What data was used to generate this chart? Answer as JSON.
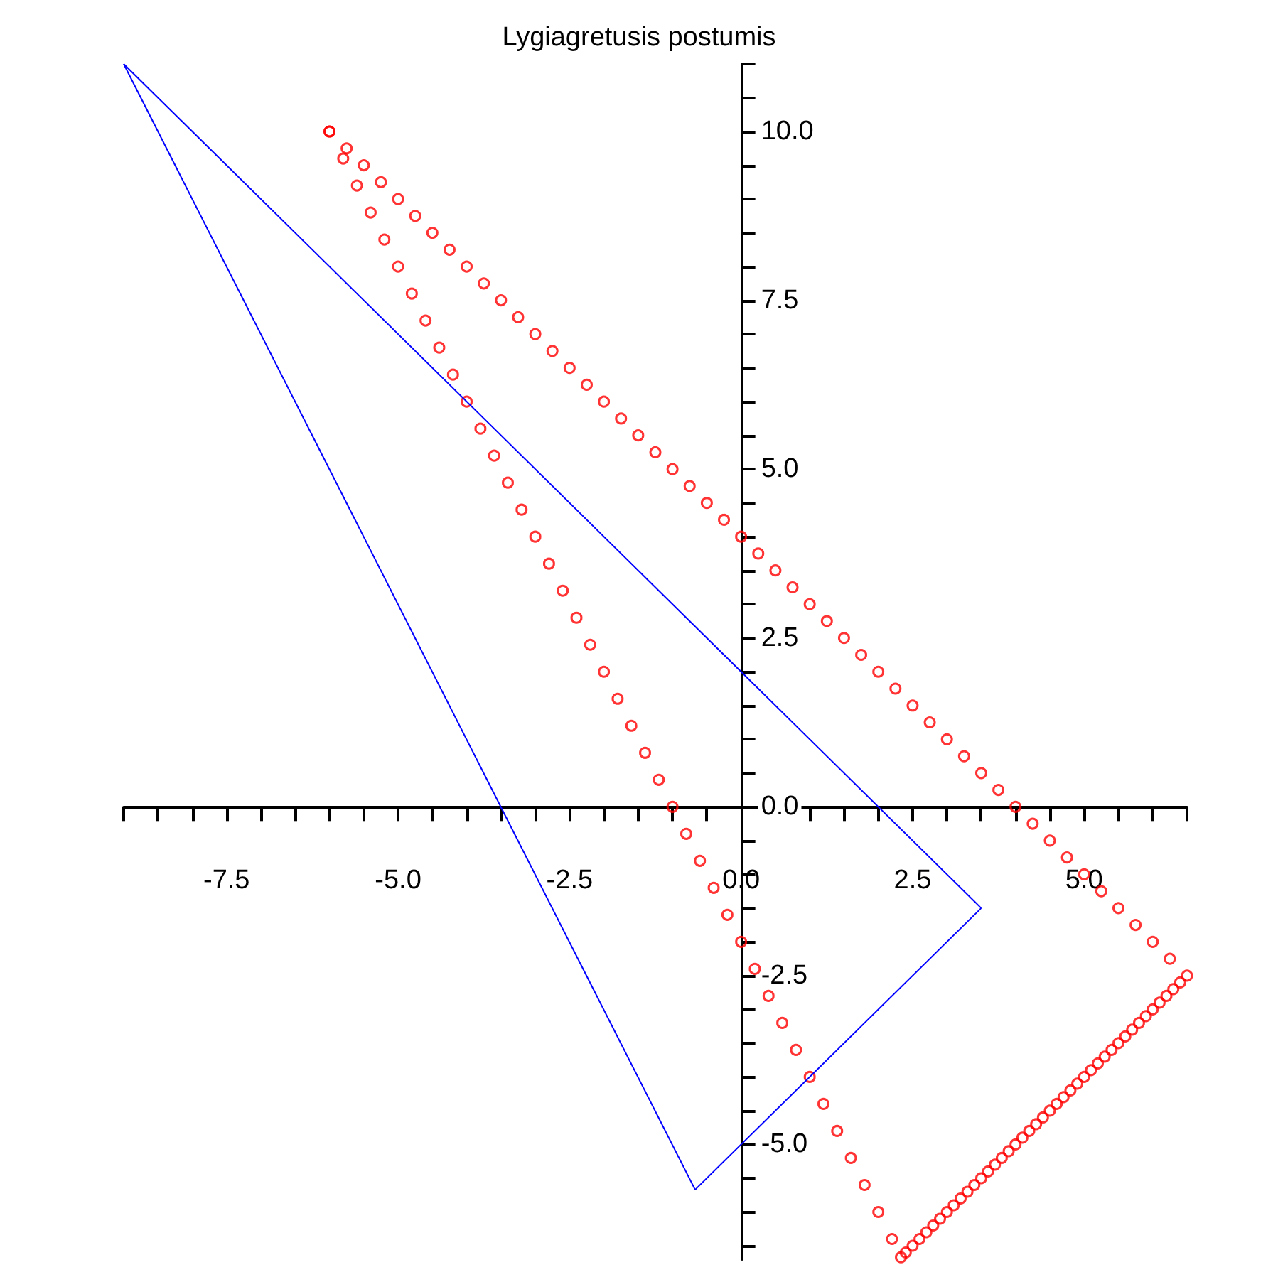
{
  "chart_data": {
    "type": "line",
    "title": "Lygiagretusis postumis",
    "xlim": [
      -9,
      6.5
    ],
    "ylim": [
      -6.7,
      11
    ],
    "xticks": [
      {
        "value": -9,
        "label": null
      },
      {
        "value": -8.5,
        "label": null
      },
      {
        "value": -8,
        "label": null
      },
      {
        "value": -7.5,
        "label": "-7.5"
      },
      {
        "value": -7,
        "label": null
      },
      {
        "value": -6.5,
        "label": null
      },
      {
        "value": -6,
        "label": null
      },
      {
        "value": -5.5,
        "label": null
      },
      {
        "value": -5,
        "label": "-5.0"
      },
      {
        "value": -4.5,
        "label": null
      },
      {
        "value": -4,
        "label": null
      },
      {
        "value": -3.5,
        "label": null
      },
      {
        "value": -3,
        "label": null
      },
      {
        "value": -2.5,
        "label": "-2.5"
      },
      {
        "value": -2,
        "label": null
      },
      {
        "value": -1.5,
        "label": null
      },
      {
        "value": -1,
        "label": null
      },
      {
        "value": -0.5,
        "label": null
      },
      {
        "value": 0,
        "label": "0.0"
      },
      {
        "value": 0.5,
        "label": null
      },
      {
        "value": 1,
        "label": null
      },
      {
        "value": 1.5,
        "label": null
      },
      {
        "value": 2,
        "label": null
      },
      {
        "value": 2.5,
        "label": "2.5"
      },
      {
        "value": 3,
        "label": null
      },
      {
        "value": 3.5,
        "label": null
      },
      {
        "value": 4,
        "label": null
      },
      {
        "value": 4.5,
        "label": null
      },
      {
        "value": 5,
        "label": "5.0"
      },
      {
        "value": 5.5,
        "label": null
      },
      {
        "value": 6,
        "label": null
      },
      {
        "value": 6.5,
        "label": null
      }
    ],
    "yticks": [
      {
        "value": -6.5,
        "label": null
      },
      {
        "value": -6,
        "label": null
      },
      {
        "value": -5.5,
        "label": null
      },
      {
        "value": -5,
        "label": "-5.0"
      },
      {
        "value": -4.5,
        "label": null
      },
      {
        "value": -4,
        "label": null
      },
      {
        "value": -3.5,
        "label": null
      },
      {
        "value": -3,
        "label": null
      },
      {
        "value": -2.5,
        "label": "-2.5"
      },
      {
        "value": -2,
        "label": null
      },
      {
        "value": -1.5,
        "label": null
      },
      {
        "value": -1,
        "label": null
      },
      {
        "value": -0.5,
        "label": null
      },
      {
        "value": 0,
        "label": "0.0"
      },
      {
        "value": 0.5,
        "label": null
      },
      {
        "value": 1,
        "label": null
      },
      {
        "value": 1.5,
        "label": null
      },
      {
        "value": 2,
        "label": null
      },
      {
        "value": 2.5,
        "label": "2.5"
      },
      {
        "value": 3,
        "label": null
      },
      {
        "value": 3.5,
        "label": null
      },
      {
        "value": 4,
        "label": null
      },
      {
        "value": 4.5,
        "label": null
      },
      {
        "value": 5,
        "label": "5.0"
      },
      {
        "value": 5.5,
        "label": null
      },
      {
        "value": 6,
        "label": null
      },
      {
        "value": 6.5,
        "label": null
      },
      {
        "value": 7,
        "label": null
      },
      {
        "value": 7.5,
        "label": "7.5"
      },
      {
        "value": 8,
        "label": null
      },
      {
        "value": 8.5,
        "label": null
      },
      {
        "value": 9,
        "label": null
      },
      {
        "value": 9.5,
        "label": null
      },
      {
        "value": 10,
        "label": "10.0"
      },
      {
        "value": 10.5,
        "label": null
      },
      {
        "value": 11,
        "label": null
      }
    ],
    "series": [
      {
        "type": "line",
        "color": "#0000ff",
        "marker": "none",
        "x": [
          -9,
          3.5
        ],
        "values": [
          11,
          -1.5
        ]
      },
      {
        "color": "#0000ff",
        "marker": "none",
        "x": [
          -0.67,
          3.5
        ],
        "values": [
          -5.67,
          -1.5
        ]
      },
      {
        "color": "#0000ff",
        "marker": "none",
        "x": [
          -9,
          -0.67
        ],
        "values": [
          11,
          -5.67
        ]
      },
      {
        "type": "scatter",
        "color": "#ff0000",
        "marker": "circle",
        "x": [
          -6,
          -5.75,
          -5.5,
          -5.25,
          -5,
          -4.75,
          -4.5,
          -4.25,
          -4,
          -3.75,
          -3.5,
          -3.25,
          -3,
          -2.75,
          -2.5,
          -2.25,
          -2,
          -1.75,
          -1.5,
          -1.25,
          -1,
          -0.75,
          -0.5,
          -0.25,
          0,
          0.25,
          0.5,
          0.75,
          1,
          1.25,
          1.5,
          1.75,
          2,
          2.25,
          2.5,
          2.75,
          3,
          3.25,
          3.5,
          3.75,
          4,
          4.25,
          4.5,
          4.75,
          5,
          5.25,
          5.5,
          5.75,
          6,
          6.25,
          6.5
        ],
        "values": [
          10,
          9.75,
          9.5,
          9.25,
          9,
          8.75,
          8.5,
          8.25,
          8,
          7.75,
          7.5,
          7.25,
          7,
          6.75,
          6.5,
          6.25,
          6,
          5.75,
          5.5,
          5.25,
          5,
          4.75,
          4.5,
          4.25,
          4,
          3.75,
          3.5,
          3.25,
          3,
          2.75,
          2.5,
          2.25,
          2,
          1.75,
          1.5,
          1.25,
          1,
          0.75,
          0.5,
          0.25,
          0,
          -0.25,
          -0.5,
          -0.75,
          -1,
          -1.25,
          -1.5,
          -1.75,
          -2,
          -2.25,
          -2.5
        ]
      },
      {
        "type": "scatter",
        "color": "#ff0000",
        "marker": "circle",
        "x": [
          6.4,
          6.3,
          6.2,
          6.1,
          6,
          5.9,
          5.8,
          5.7,
          5.6,
          5.5,
          5.4,
          5.3,
          5.2,
          5.1,
          5,
          4.9,
          4.8,
          4.7,
          4.6,
          4.5,
          4.4,
          4.3,
          4.2,
          4.1,
          4,
          3.9,
          3.8,
          3.7,
          3.6,
          3.5,
          3.4,
          3.3,
          3.2,
          3.1,
          3,
          2.9,
          2.8,
          2.7,
          2.6,
          2.5,
          2.4,
          2.33
        ],
        "values": [
          -2.6,
          -2.7,
          -2.8,
          -2.9,
          -3,
          -3.1,
          -3.2,
          -3.3,
          -3.4,
          -3.5,
          -3.6,
          -3.7,
          -3.8,
          -3.9,
          -4,
          -4.1,
          -4.2,
          -4.3,
          -4.4,
          -4.5,
          -4.6,
          -4.7,
          -4.8,
          -4.9,
          -5,
          -5.1,
          -5.2,
          -5.3,
          -5.4,
          -5.5,
          -5.6,
          -5.7,
          -5.8,
          -5.9,
          -6,
          -6.1,
          -6.2,
          -6.3,
          -6.4,
          -6.5,
          -6.6,
          -6.67
        ]
      },
      {
        "type": "scatter",
        "color": "#ff0000",
        "marker": "circle",
        "x": [
          2.2,
          2,
          1.8,
          1.6,
          1.4,
          1.2,
          1,
          0.8,
          0.6,
          0.4,
          0.2,
          0,
          -0.2,
          -0.4,
          -0.6,
          -0.8,
          -1,
          -1.2,
          -1.4,
          -1.6,
          -1.8,
          -2,
          -2.2,
          -2.4,
          -2.6,
          -2.8,
          -3,
          -3.2,
          -3.4,
          -3.6,
          -3.8,
          -4,
          -4.2,
          -4.4,
          -4.6,
          -4.8,
          -5,
          -5.2,
          -5.4,
          -5.6,
          -5.8,
          -6
        ],
        "values": [
          -6.4,
          -6,
          -5.6,
          -5.2,
          -4.8,
          -4.4,
          -4,
          -3.6,
          -3.2,
          -2.8,
          -2.4,
          -2,
          -1.6,
          -1.2,
          -0.8,
          -0.4,
          0,
          0.4,
          0.8,
          1.2,
          1.6,
          2,
          2.4,
          2.8,
          3.2,
          3.6,
          4,
          4.4,
          4.8,
          5.2,
          5.6,
          6,
          6.4,
          6.8,
          7.2,
          7.6,
          8,
          8.4,
          8.8,
          9.2,
          9.6,
          10
        ]
      }
    ]
  }
}
